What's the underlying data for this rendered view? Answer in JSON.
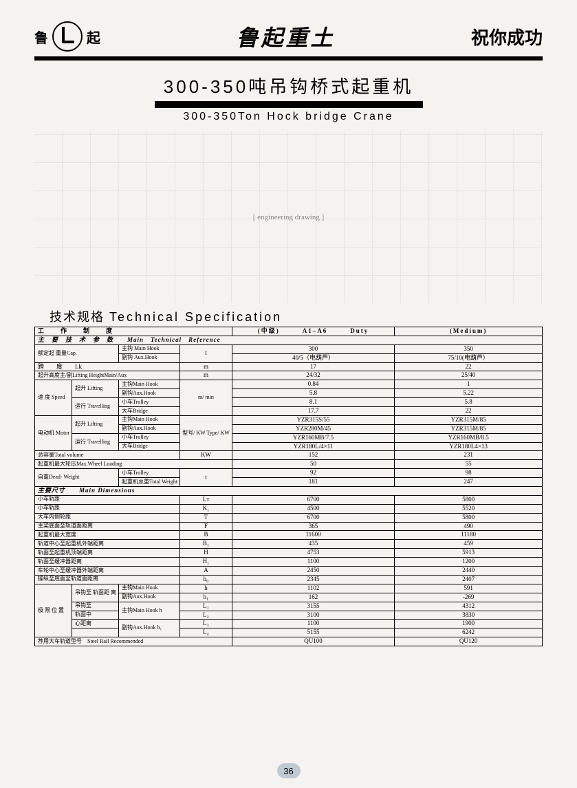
{
  "header": {
    "logo_left": "鲁",
    "logo_right": "起",
    "brand": "鲁起重土",
    "slogan": "祝你成功"
  },
  "title": {
    "cn": "300-350吨吊钩桥式起重机",
    "en": "300-350Ton Hock bridge Crane"
  },
  "section_title_cn": "技术规格",
  "section_title_en": "Technical  Specification",
  "duty": {
    "label": "工　　作　　制　　度",
    "mid": "(中级)",
    "code": "A1–A6",
    "duty_en": "Duty",
    "medium": "(Medium)"
  },
  "ref": "主　要　技　术　参　数　　Main　Technical　Reference",
  "cap": {
    "label": "额定起\n重量Cap.",
    "main": "主钩 Main Hook",
    "aux": "副钩 Aux.Hook",
    "unit": "t",
    "main_300": "300",
    "main_350": "350",
    "aux_300": "40/5（电葫芦）",
    "aux_350": "75/10(电葫芦）"
  },
  "span": {
    "label": "跨　　度　　Lk",
    "unit": "m",
    "v300": "17",
    "v350": "22"
  },
  "lift": {
    "label": "起升高度主/副Lifting HeightMain/Aux",
    "unit": "m",
    "v300": "24/32",
    "v350": "25/40"
  },
  "speed": {
    "group": "速\n度\nSpeed",
    "lifting": "起升\nLifting",
    "mainhook": "主钩Main Hook",
    "auxhook": "副钩Aux.Hook",
    "trav": "运行\nTravelling",
    "trolley": "小车Trolley",
    "bridge": "大车Bridge",
    "unit": "m/\nmin",
    "v": {
      "main": [
        "0.84",
        "1"
      ],
      "aux": [
        "5.8",
        "5.22"
      ],
      "trolley": [
        "8.1",
        "5.8"
      ],
      "bridge": [
        "17.7",
        "22"
      ]
    }
  },
  "motor": {
    "group": "电动机\nMotor",
    "lifting": "起升\nLifting",
    "mainhook": "主钩Main Hook",
    "auxhook": "副钩Aux.Hook",
    "trav": "运行\nTravelling",
    "trolley": "小车Trolley",
    "bridge": "大车Bridge",
    "unit": "型号/\nKW\nType/\nKW",
    "v": {
      "main": [
        "YZR315S/55",
        "YZR315M/85"
      ],
      "aux": [
        "YZR280M/45",
        "YZR315M/85"
      ],
      "trolley": [
        "YZR160MB/7.5",
        "YZR160MB/8.5"
      ],
      "bridge": [
        "YZR180L/4×11",
        "YZR180L4×13"
      ]
    }
  },
  "totvol": {
    "label": "总容量Total volume",
    "unit": "KW",
    "v300": "152",
    "v350": "231"
  },
  "wheel": {
    "label": "起重机最大轮压Max.Wheel Loading",
    "v300": "50",
    "v350": "55"
  },
  "dead": {
    "group": "自重Dead-\nWeight",
    "trolley": "小车Trolley",
    "total": "起重机总重Total Weight",
    "unit": "t",
    "v": {
      "trolley": [
        "92",
        "98"
      ],
      "total": [
        "181",
        "247"
      ]
    }
  },
  "dim_header": "主要尺寸　　Main Dimensions",
  "dims": [
    {
      "label": "小车轨距",
      "sym": "Lт",
      "v300": "6700",
      "v350": "5800"
    },
    {
      "label": "小车轨距",
      "sym": "K₁",
      "v300": "4500",
      "v350": "5520"
    },
    {
      "label": "大车内侧轮距",
      "sym": "T",
      "v300": "6700",
      "v350": "5800"
    },
    {
      "label": "主梁底面至轨道面距离",
      "sym": "F",
      "v300": "365",
      "v350": "490"
    },
    {
      "label": "起重机最大宽度",
      "sym": "B",
      "v300": "11600",
      "v350": "11180"
    },
    {
      "label": "轨道中心至起重机外端距离",
      "sym": "B₁",
      "v300": "435",
      "v350": "459"
    },
    {
      "label": "轨面至起重机顶端距离",
      "sym": "H",
      "v300": "4753",
      "v350": "5913"
    },
    {
      "label": "轨面至缓冲器距离",
      "sym": "H₁",
      "v300": "1100",
      "v350": "1200"
    },
    {
      "label": "车轮中心至缓冲器外端距离",
      "sym": "A",
      "v300": "2450",
      "v350": "2440"
    },
    {
      "label": "操纵至底面至轨道面距离",
      "sym": "h₀",
      "v300": "2345",
      "v350": "2407"
    }
  ],
  "extreme": {
    "group": "极\n限\n位\n置",
    "rows": [
      {
        "l1": "吊钩至\n轨面距\n离",
        "l2": "主钩Main Hook",
        "sym": "h",
        "v300": "1102",
        "v350": "591"
      },
      {
        "l1": "",
        "l2": "副钩Aux.Hook",
        "sym": "h₁",
        "v300": "162",
        "v350": "-269"
      },
      {
        "l1": "吊钩至",
        "l2": "主钩Main Hook h",
        "sym": "L₁",
        "v300": "3155",
        "v350": "4312"
      },
      {
        "l1": "轨面中",
        "l2": "",
        "sym": "L₂",
        "v300": "3100",
        "v350": "3830"
      },
      {
        "l1": "心距离",
        "l2": "副钩Aux.Hook h₁",
        "sym": "L₃",
        "v300": "1100",
        "v350": "1900"
      },
      {
        "l1": "",
        "l2": "",
        "sym": "L₄",
        "v300": "5155",
        "v350": "6242"
      }
    ]
  },
  "rail": {
    "label": "荐用大车轨道型号　Steel Rail Recommended",
    "v300": "QU100",
    "v350": "QU120"
  },
  "page_number": "36"
}
